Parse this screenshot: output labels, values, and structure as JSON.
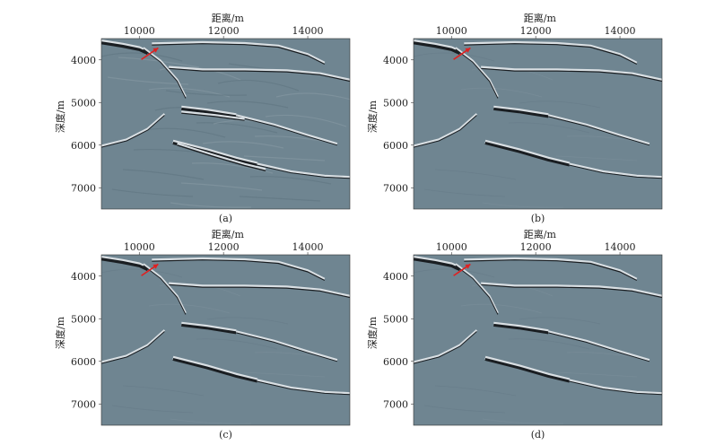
{
  "figure": {
    "panels": [
      {
        "id": "a",
        "caption": "(a)"
      },
      {
        "id": "b",
        "caption": "(b)"
      },
      {
        "id": "c",
        "caption": "(c)"
      },
      {
        "id": "d",
        "caption": "(d)"
      }
    ],
    "x_axis_title": "距离/m",
    "y_axis_title": "深度/m",
    "x_tick_labels": [
      "10000",
      "12000",
      "14000"
    ],
    "y_tick_labels": [
      "4000",
      "5000",
      "6000",
      "7000"
    ],
    "colors": {
      "background_gray": "#6f8591",
      "reflector_dark": "#1a1e22",
      "reflector_light": "#d9dfe3",
      "arrow_red": "#e02020"
    }
  },
  "chart_data": [
    {
      "type": "heatmap",
      "caption": "(a)",
      "xlabel": "距离/m",
      "ylabel": "深度/m",
      "xlim": [
        9100,
        15000
      ],
      "ylim": [
        7500,
        3500
      ],
      "x_ticks": [
        10000,
        12000,
        14000
      ],
      "y_ticks": [
        4000,
        5000,
        6000,
        7000
      ],
      "annotation": "red arrow near (10200, 3900)"
    },
    {
      "type": "heatmap",
      "caption": "(b)",
      "xlabel": "距离/m",
      "ylabel": "深度/m",
      "xlim": [
        9100,
        15000
      ],
      "ylim": [
        7500,
        3500
      ],
      "x_ticks": [
        10000,
        12000,
        14000
      ],
      "y_ticks": [
        4000,
        5000,
        6000,
        7000
      ],
      "annotation": "red arrow near (10200, 3900)"
    },
    {
      "type": "heatmap",
      "caption": "(c)",
      "xlabel": "距离/m",
      "ylabel": "深度/m",
      "xlim": [
        9100,
        15000
      ],
      "ylim": [
        7500,
        3500
      ],
      "x_ticks": [
        10000,
        12000,
        14000
      ],
      "y_ticks": [
        4000,
        5000,
        6000,
        7000
      ],
      "annotation": "red arrow near (10200, 3900)"
    },
    {
      "type": "heatmap",
      "caption": "(d)",
      "xlabel": "距离/m",
      "ylabel": "深度/m",
      "xlim": [
        9100,
        15000
      ],
      "ylim": [
        7500,
        3500
      ],
      "x_ticks": [
        10000,
        12000,
        14000
      ],
      "y_ticks": [
        4000,
        5000,
        6000,
        7000
      ],
      "annotation": "red arrow near (10200, 3900)"
    }
  ]
}
